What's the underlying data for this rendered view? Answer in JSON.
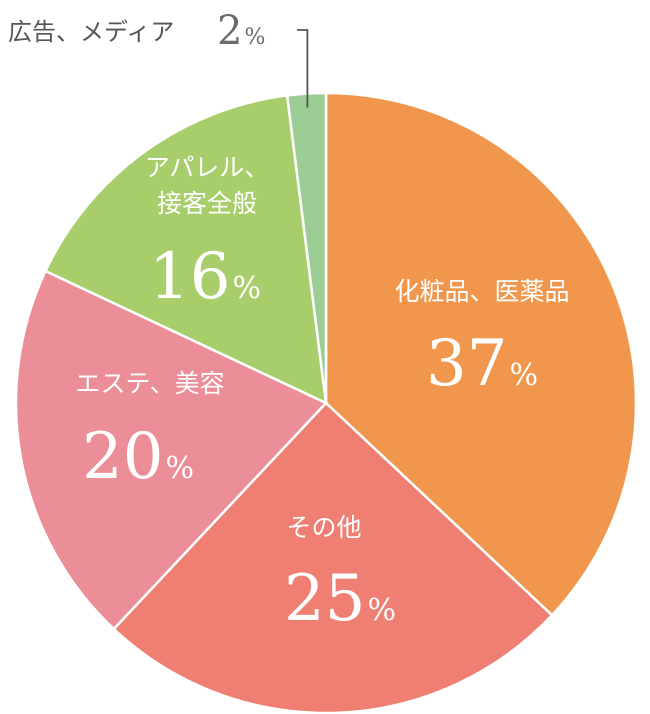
{
  "chart_data": {
    "type": "pie",
    "title": "",
    "start": "top",
    "direction": "clockwise",
    "unit": "%",
    "slices": [
      {
        "label": "化粧品、医薬品",
        "value": 37,
        "color": "#f0974d"
      },
      {
        "label": "その他",
        "value": 25,
        "color": "#ee7f72"
      },
      {
        "label": "エステ、美容",
        "value": 20,
        "color": "#ec8e98"
      },
      {
        "label": "アパレル、接客全般",
        "label_lines": [
          "アパレル、",
          "接客全般"
        ],
        "value": 16,
        "color": "#a8ce6c"
      },
      {
        "label": "広告、メディア",
        "value": 2,
        "color": "#9ccd95"
      }
    ],
    "callout": {
      "slice": "広告、メディア",
      "leader_color": "#555555"
    }
  }
}
